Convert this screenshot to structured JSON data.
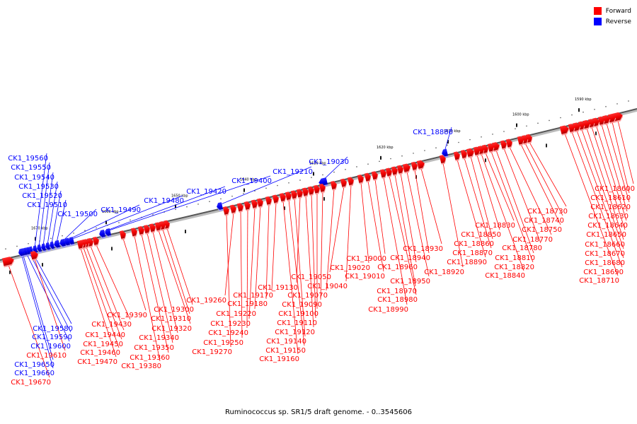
{
  "caption": "Ruminococcus sp. SR1/5 draft genome. - 0..3545606",
  "legend": {
    "forward_label": "Forward",
    "reverse_label": "Reverse",
    "forward_color": "#ff0000",
    "reverse_color": "#0000ff"
  },
  "scale_labels": [
    "1590 kbp",
    "1600 kbp",
    "1610 kbp",
    "1620 kbp",
    "1630 kbp",
    "1640 kbp",
    "1650 kbp",
    "1660 kbp",
    "1670 kbp"
  ],
  "genes": [
    {
      "id": "CK1_18600",
      "strand": "forward"
    },
    {
      "id": "CK1_18610",
      "strand": "forward"
    },
    {
      "id": "CK1_18620",
      "strand": "forward"
    },
    {
      "id": "CK1_18630",
      "strand": "forward"
    },
    {
      "id": "CK1_18640",
      "strand": "forward"
    },
    {
      "id": "CK1_18650",
      "strand": "forward"
    },
    {
      "id": "CK1_18660",
      "strand": "forward"
    },
    {
      "id": "CK1_18670",
      "strand": "forward"
    },
    {
      "id": "CK1_18680",
      "strand": "forward"
    },
    {
      "id": "CK1_18690",
      "strand": "forward"
    },
    {
      "id": "CK1_18710",
      "strand": "forward"
    },
    {
      "id": "CK1_18730",
      "strand": "forward"
    },
    {
      "id": "CK1_18740",
      "strand": "forward"
    },
    {
      "id": "CK1_18750",
      "strand": "forward"
    },
    {
      "id": "CK1_18770",
      "strand": "forward"
    },
    {
      "id": "CK1_18780",
      "strand": "forward"
    },
    {
      "id": "CK1_18810",
      "strand": "forward"
    },
    {
      "id": "CK1_18820",
      "strand": "forward"
    },
    {
      "id": "CK1_18830",
      "strand": "forward"
    },
    {
      "id": "CK1_18840",
      "strand": "forward"
    },
    {
      "id": "CK1_18850",
      "strand": "forward"
    },
    {
      "id": "CK1_18860",
      "strand": "forward"
    },
    {
      "id": "CK1_18870",
      "strand": "forward"
    },
    {
      "id": "CK1_18880",
      "strand": "reverse"
    },
    {
      "id": "CK1_18890",
      "strand": "forward"
    },
    {
      "id": "CK1_18920",
      "strand": "forward"
    },
    {
      "id": "CK1_18930",
      "strand": "forward"
    },
    {
      "id": "CK1_18940",
      "strand": "forward"
    },
    {
      "id": "CK1_18950",
      "strand": "forward"
    },
    {
      "id": "CK1_18960",
      "strand": "forward"
    },
    {
      "id": "CK1_18970",
      "strand": "forward"
    },
    {
      "id": "CK1_18980",
      "strand": "forward"
    },
    {
      "id": "CK1_18990",
      "strand": "forward"
    },
    {
      "id": "CK1_19000",
      "strand": "forward"
    },
    {
      "id": "CK1_19010",
      "strand": "forward"
    },
    {
      "id": "CK1_19020",
      "strand": "forward"
    },
    {
      "id": "CK1_19030",
      "strand": "reverse"
    },
    {
      "id": "CK1_19040",
      "strand": "forward"
    },
    {
      "id": "CK1_19050",
      "strand": "forward"
    },
    {
      "id": "CK1_19070",
      "strand": "forward"
    },
    {
      "id": "CK1_19090",
      "strand": "forward"
    },
    {
      "id": "CK1_19100",
      "strand": "forward"
    },
    {
      "id": "CK1_19110",
      "strand": "forward"
    },
    {
      "id": "CK1_19120",
      "strand": "forward"
    },
    {
      "id": "CK1_19130",
      "strand": "forward"
    },
    {
      "id": "CK1_19140",
      "strand": "forward"
    },
    {
      "id": "CK1_19150",
      "strand": "forward"
    },
    {
      "id": "CK1_19160",
      "strand": "forward"
    },
    {
      "id": "CK1_19170",
      "strand": "forward"
    },
    {
      "id": "CK1_19180",
      "strand": "forward"
    },
    {
      "id": "CK1_19210",
      "strand": "reverse"
    },
    {
      "id": "CK1_19220",
      "strand": "forward"
    },
    {
      "id": "CK1_19230",
      "strand": "forward"
    },
    {
      "id": "CK1_19240",
      "strand": "forward"
    },
    {
      "id": "CK1_19250",
      "strand": "forward"
    },
    {
      "id": "CK1_19260",
      "strand": "forward"
    },
    {
      "id": "CK1_19270",
      "strand": "forward"
    },
    {
      "id": "CK1_19300",
      "strand": "forward"
    },
    {
      "id": "CK1_19310",
      "strand": "forward"
    },
    {
      "id": "CK1_19320",
      "strand": "forward"
    },
    {
      "id": "CK1_19340",
      "strand": "forward"
    },
    {
      "id": "CK1_19350",
      "strand": "forward"
    },
    {
      "id": "CK1_19360",
      "strand": "forward"
    },
    {
      "id": "CK1_19380",
      "strand": "forward"
    },
    {
      "id": "CK1_19390",
      "strand": "forward"
    },
    {
      "id": "CK1_19400",
      "strand": "reverse"
    },
    {
      "id": "CK1_19420",
      "strand": "reverse"
    },
    {
      "id": "CK1_19430",
      "strand": "forward"
    },
    {
      "id": "CK1_19440",
      "strand": "forward"
    },
    {
      "id": "CK1_19450",
      "strand": "forward"
    },
    {
      "id": "CK1_19460",
      "strand": "forward"
    },
    {
      "id": "CK1_19470",
      "strand": "forward"
    },
    {
      "id": "CK1_19480",
      "strand": "reverse"
    },
    {
      "id": "CK1_19490",
      "strand": "reverse"
    },
    {
      "id": "CK1_19500",
      "strand": "reverse"
    },
    {
      "id": "CK1_19510",
      "strand": "reverse"
    },
    {
      "id": "CK1_19520",
      "strand": "reverse"
    },
    {
      "id": "CK1_19530",
      "strand": "reverse"
    },
    {
      "id": "CK1_19540",
      "strand": "reverse"
    },
    {
      "id": "CK1_19550",
      "strand": "reverse"
    },
    {
      "id": "CK1_19560",
      "strand": "reverse"
    },
    {
      "id": "CK1_19580",
      "strand": "reverse"
    },
    {
      "id": "CK1_19590",
      "strand": "reverse"
    },
    {
      "id": "CK1_19600",
      "strand": "reverse"
    },
    {
      "id": "CK1_19610",
      "strand": "forward"
    },
    {
      "id": "CK1_19650",
      "strand": "reverse"
    },
    {
      "id": "CK1_19660",
      "strand": "reverse"
    },
    {
      "id": "CK1_19670",
      "strand": "forward"
    }
  ]
}
